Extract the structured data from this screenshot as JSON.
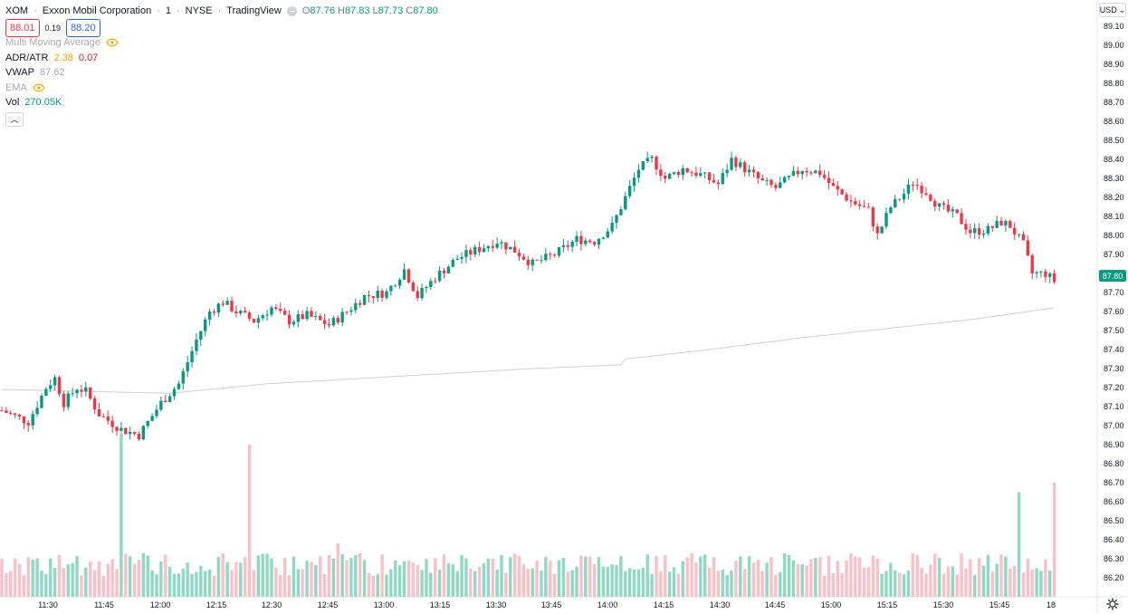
{
  "header": {
    "symbol": "XOM",
    "name": "Exxon Mobil Corporation",
    "interval": "1",
    "exchange": "NYSE",
    "source": "TradingView",
    "open_label": "O",
    "open": "87.76",
    "high_label": "H",
    "high": "87.83",
    "low_label": "L",
    "low": "87.73",
    "close_label": "C",
    "close": "87.80",
    "bid": "88.01",
    "spread": "0.19",
    "ask": "88.20"
  },
  "indicators": [
    {
      "name": "Multi Moving Average",
      "hidden": true
    },
    {
      "name": "ADR/ATR",
      "v1": "2.38",
      "v2": "0.07"
    },
    {
      "name": "VWAP",
      "v1": "87.62"
    },
    {
      "name": "EMA",
      "hidden": true
    },
    {
      "name": "Vol",
      "v1": "270.05K"
    }
  ],
  "currency": "USD",
  "colors": {
    "up": "#089981",
    "down": "#f23645",
    "up_vol": "#8fd9c3",
    "down_vol": "#f9c0c7",
    "vwap": "#d0d0d0"
  },
  "chart_data": {
    "type": "candlestick",
    "price_axis": {
      "min": 86.15,
      "max": 89.15,
      "ticks": [
        "89.10",
        "89.00",
        "88.90",
        "88.80",
        "88.70",
        "88.60",
        "88.50",
        "88.40",
        "88.30",
        "88.20",
        "88.10",
        "88.00",
        "87.90",
        "87.80",
        "87.70",
        "87.60",
        "87.50",
        "87.40",
        "87.30",
        "87.20",
        "87.10",
        "87.00",
        "86.90",
        "86.80",
        "86.70",
        "86.60",
        "86.50",
        "86.40",
        "86.30",
        "86.20"
      ]
    },
    "time_axis": [
      "11:30",
      "11:45",
      "12:00",
      "12:15",
      "12:30",
      "12:45",
      "13:00",
      "13:15",
      "13:30",
      "13:45",
      "14:00",
      "14:15",
      "14:30",
      "14:45",
      "15:00",
      "15:15",
      "15:30",
      "15:45",
      "18"
    ],
    "last_price": "87.80",
    "close_path": [
      [
        0,
        87.08
      ],
      [
        6,
        87.02
      ],
      [
        10,
        87.2
      ],
      [
        12,
        87.25
      ],
      [
        14,
        87.12
      ],
      [
        17,
        87.2
      ],
      [
        19,
        87.18
      ],
      [
        22,
        87.06
      ],
      [
        27,
        86.98
      ],
      [
        31,
        86.95
      ],
      [
        36,
        87.12
      ],
      [
        40,
        87.22
      ],
      [
        44,
        87.45
      ],
      [
        47,
        87.6
      ],
      [
        50,
        87.65
      ],
      [
        53,
        87.6
      ],
      [
        57,
        87.55
      ],
      [
        61,
        87.62
      ],
      [
        65,
        87.55
      ],
      [
        69,
        87.58
      ],
      [
        74,
        87.53
      ],
      [
        78,
        87.6
      ],
      [
        82,
        87.68
      ],
      [
        87,
        87.7
      ],
      [
        91,
        87.82
      ],
      [
        94,
        87.68
      ],
      [
        98,
        87.78
      ],
      [
        103,
        87.88
      ],
      [
        108,
        87.93
      ],
      [
        112,
        87.97
      ],
      [
        116,
        87.92
      ],
      [
        120,
        87.85
      ],
      [
        125,
        87.9
      ],
      [
        130,
        87.98
      ],
      [
        134,
        87.97
      ],
      [
        138,
        88.05
      ],
      [
        141,
        88.2
      ],
      [
        144,
        88.35
      ],
      [
        147,
        88.4
      ],
      [
        150,
        88.3
      ],
      [
        154,
        88.35
      ],
      [
        158,
        88.32
      ],
      [
        162,
        88.27
      ],
      [
        165,
        88.4
      ],
      [
        168,
        88.35
      ],
      [
        172,
        88.28
      ],
      [
        175,
        88.25
      ],
      [
        178,
        88.3
      ],
      [
        181,
        88.35
      ],
      [
        185,
        88.33
      ],
      [
        188,
        88.25
      ],
      [
        192,
        88.18
      ],
      [
        196,
        88.13
      ],
      [
        198,
        88.0
      ],
      [
        201,
        88.15
      ],
      [
        204,
        88.22
      ],
      [
        206,
        88.28
      ],
      [
        209,
        88.23
      ],
      [
        212,
        88.15
      ],
      [
        216,
        88.1
      ],
      [
        219,
        88.02
      ],
      [
        223,
        88.03
      ],
      [
        226,
        88.07
      ],
      [
        228,
        88.05
      ],
      [
        231,
        87.95
      ],
      [
        233,
        87.8
      ],
      [
        236,
        87.8
      ],
      [
        238,
        87.76
      ]
    ],
    "volume_spikes": [
      [
        27,
        86.96
      ],
      [
        56,
        86.9
      ],
      [
        76,
        86.38
      ],
      [
        178,
        86.32
      ],
      [
        198,
        86.3
      ],
      [
        230,
        86.65
      ],
      [
        238,
        86.7
      ]
    ],
    "vwap_path": [
      [
        0,
        87.19
      ],
      [
        20,
        87.18
      ],
      [
        38,
        87.17
      ],
      [
        60,
        87.22
      ],
      [
        90,
        87.26
      ],
      [
        120,
        87.3
      ],
      [
        140,
        87.32
      ],
      [
        141,
        87.35
      ],
      [
        160,
        87.4
      ],
      [
        180,
        87.46
      ],
      [
        200,
        87.51
      ],
      [
        220,
        87.56
      ],
      [
        238,
        87.62
      ]
    ]
  }
}
